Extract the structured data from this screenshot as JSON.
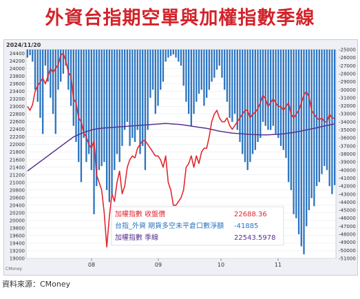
{
  "title": "外資台指期空單與加權指數季線",
  "source": "資料來源：CMoney",
  "chart": {
    "date_label": "2024/11/20",
    "brand_label": "CMoney",
    "legend": [
      {
        "label": "加權指數 收盤價",
        "value": "22688.36",
        "color": "#e3262d"
      },
      {
        "label": "台指_外資 期貨多空未平倉口數淨額",
        "value": "-41885",
        "color": "#2b74c0"
      },
      {
        "label": "加權指數 季線",
        "value": "22543.5978",
        "color": "#5a2d8a"
      }
    ],
    "colors": {
      "price": "#e3262d",
      "bars": "#2b74c0",
      "ma": "#55308f"
    }
  },
  "chart_data": {
    "type": "bar+line",
    "x_month_labels": [
      "08",
      "09",
      "10",
      "11"
    ],
    "left_axis": {
      "min": 19000,
      "max": 24500,
      "step": 100,
      "label_step": 200
    },
    "right_axis": {
      "min": -51000,
      "max": -25000,
      "step": 1000
    },
    "series": [
      {
        "name": "加權指數 收盤價",
        "axis": "left",
        "values": [
          23000,
          22900,
          23050,
          23400,
          23550,
          23650,
          23750,
          23600,
          23800,
          24000,
          23900,
          24000,
          24100,
          24350,
          24400,
          24200,
          23900,
          23800,
          23200,
          23100,
          22700,
          22600,
          22300,
          22200,
          22000,
          21900,
          22100,
          21200,
          21000,
          20800,
          20200,
          19300,
          20100,
          20700,
          20500,
          21000,
          21300,
          20700,
          20900,
          21400,
          21600,
          21700,
          21650,
          21900,
          22000,
          22100,
          22100,
          22000,
          21900,
          21800,
          21700,
          21700,
          21600,
          21400,
          21700,
          21000,
          20800,
          20400,
          20400,
          20500,
          20600,
          20800,
          21400,
          21500,
          21700,
          21400,
          21700,
          21500,
          21800,
          21900,
          21900,
          22200,
          22600,
          22800,
          22900,
          22700,
          22600,
          22600,
          22700,
          22500,
          22400,
          22500,
          22600,
          22700,
          22800,
          22900,
          22900,
          22700,
          22800,
          22850,
          22950,
          23100,
          23300,
          23200,
          23000,
          23100,
          23200,
          23100,
          23000,
          23000,
          22900,
          23000,
          23100,
          22800,
          22700,
          22800,
          22900,
          23100,
          23300,
          23400,
          23250,
          22900,
          22800,
          22700,
          22650,
          22700,
          22600,
          22600,
          22800,
          22700,
          22688.36
        ]
      },
      {
        "name": "台指_外資 期貨多空未平倉口數淨額",
        "axis": "right",
        "values": [
          -26000,
          -25700,
          -26500,
          -30000,
          -31500,
          -33500,
          -35500,
          -27000,
          -29000,
          -31000,
          -33000,
          -35500,
          -30000,
          -29000,
          -28000,
          -27000,
          -30000,
          -32000,
          -34500,
          -36500,
          -39000,
          -41500,
          -36000,
          -39000,
          -38000,
          -40000,
          -45500,
          -42000,
          -40000,
          -39500,
          -39000,
          -42500,
          -44000,
          -43000,
          -40000,
          -38000,
          -39000,
          -37000,
          -35000,
          -34000,
          -37000,
          -36000,
          -36500,
          -35000,
          -38000,
          -37000,
          -40000,
          -35000,
          -31000,
          -30000,
          -33000,
          -32000,
          -30000,
          -29000,
          -26500,
          -26000,
          -25800,
          -25600,
          -26000,
          -26500,
          -27000,
          -29500,
          -31500,
          -33000,
          -34500,
          -33000,
          -31500,
          -30500,
          -30000,
          -32000,
          -31000,
          -30000,
          -29000,
          -28500,
          -27500,
          -27000,
          -28500,
          -30000,
          -31500,
          -33500,
          -34000,
          -33000,
          -35000,
          -36500,
          -38000,
          -39000,
          -40000,
          -39000,
          -38000,
          -37500,
          -36500,
          -36000,
          -34000,
          -34500,
          -35000,
          -35000,
          -34500,
          -35500,
          -36000,
          -37000,
          -37500,
          -38500,
          -41500,
          -42500,
          -45500,
          -46000,
          -48000,
          -49500,
          -50500,
          -47000,
          -45000,
          -43500,
          -44500,
          -42000,
          -41500,
          -40500,
          -39500,
          -40000,
          -42000,
          -43000,
          -41885
        ]
      },
      {
        "name": "加權指數 季線",
        "axis": "left",
        "values": [
          21300,
          21350,
          21400,
          21450,
          21500,
          21550,
          21600,
          21650,
          21700,
          21750,
          21800,
          21850,
          21900,
          21950,
          22000,
          22050,
          22100,
          22150,
          22200,
          22230,
          22260,
          22290,
          22320,
          22340,
          22360,
          22380,
          22400,
          22410,
          22420,
          22430,
          22435,
          22440,
          22445,
          22450,
          22455,
          22460,
          22465,
          22470,
          22475,
          22480,
          22485,
          22490,
          22495,
          22500,
          22505,
          22510,
          22515,
          22520,
          22525,
          22530,
          22535,
          22540,
          22545,
          22550,
          22555,
          22550,
          22545,
          22540,
          22535,
          22530,
          22525,
          22515,
          22505,
          22495,
          22485,
          22475,
          22465,
          22455,
          22445,
          22435,
          22425,
          22410,
          22395,
          22380,
          22365,
          22350,
          22340,
          22330,
          22320,
          22310,
          22300,
          22295,
          22290,
          22285,
          22280,
          22275,
          22270,
          22265,
          22262,
          22260,
          22258,
          22256,
          22254,
          22254,
          22256,
          22258,
          22262,
          22266,
          22270,
          22276,
          22282,
          22290,
          22298,
          22308,
          22318,
          22330,
          22342,
          22356,
          22370,
          22384,
          22398,
          22412,
          22426,
          22440,
          22456,
          22472,
          22488,
          22500,
          22515,
          22530,
          22543.5978
        ]
      }
    ]
  }
}
